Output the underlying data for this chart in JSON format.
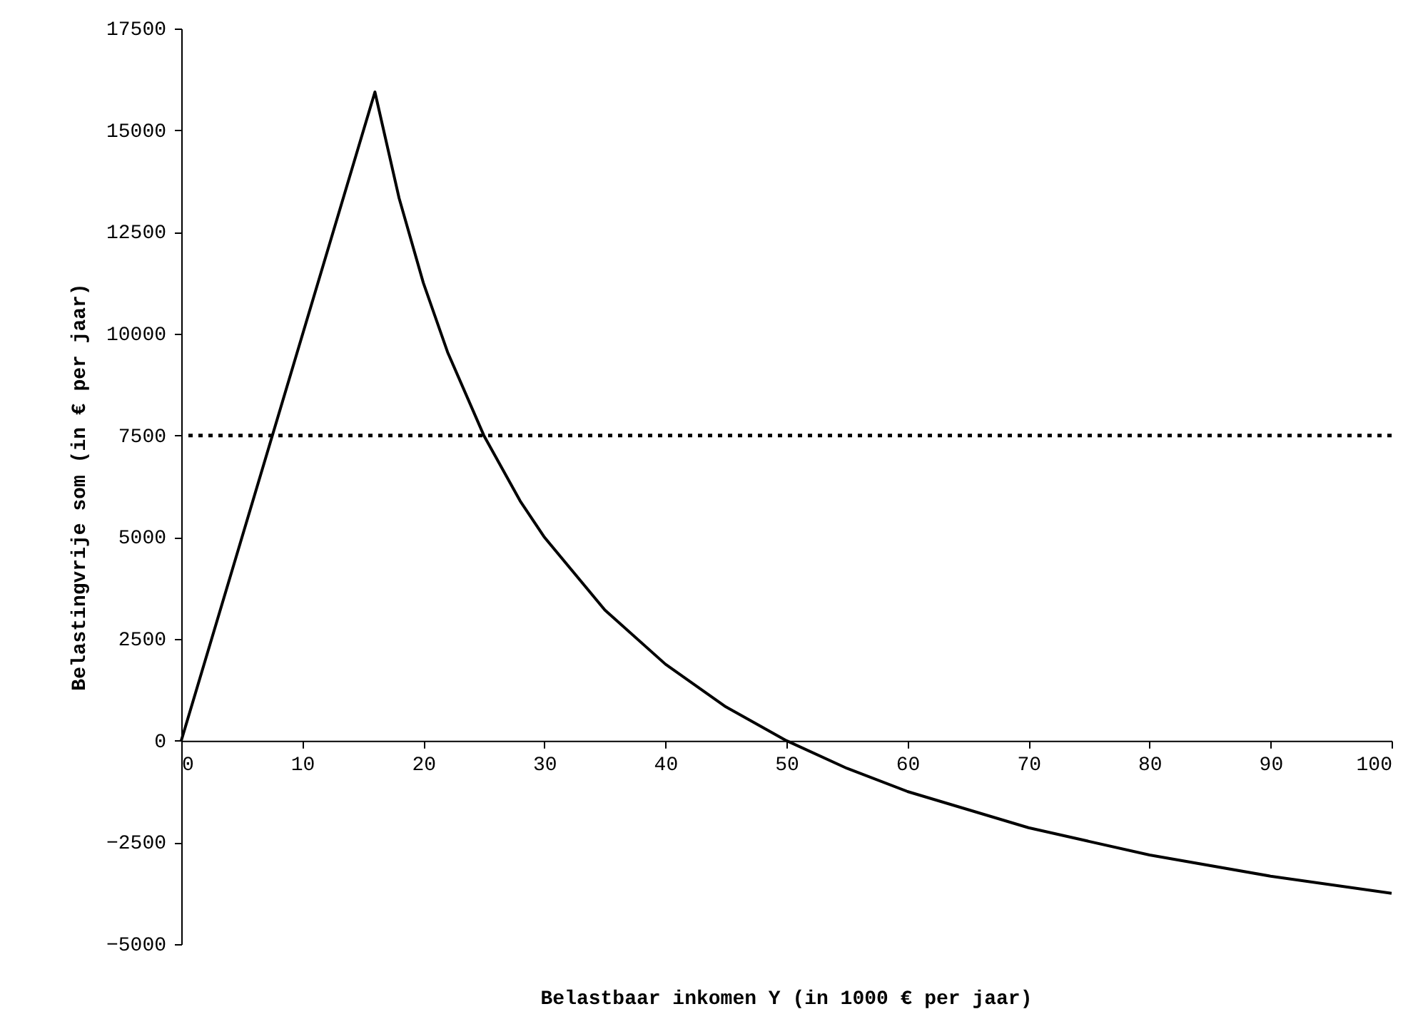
{
  "chart_data": {
    "type": "line",
    "xlabel": "Belastbaar inkomen Y (in 1000 € per jaar)",
    "ylabel": "Belastingvrije som (in € per jaar)",
    "x": [
      0,
      16,
      18,
      20,
      22,
      25,
      28,
      30,
      35,
      40,
      45,
      50,
      55,
      60,
      70,
      80,
      90,
      100
    ],
    "series": [
      {
        "color": "#000000",
        "values": [
          0,
          15940,
          13330,
          11250,
          9550,
          7500,
          5890,
          5000,
          3210,
          1880,
          830,
          0,
          -680,
          -1250,
          -2140,
          -2810,
          -3330,
          -3750
        ]
      }
    ],
    "xlim": [
      0,
      100
    ],
    "xticks": [
      0,
      10,
      20,
      30,
      40,
      50,
      60,
      70,
      80,
      90,
      100
    ],
    "ylim": [
      -5000,
      17500
    ],
    "yticks": [
      -5000,
      -2500,
      0,
      2500,
      5000,
      7500,
      10000,
      12500,
      15000,
      17500
    ],
    "ref_lines": [
      {
        "axis": "y",
        "value": 7500,
        "color": "#000000",
        "line_style": "dotted"
      }
    ],
    "grid": false,
    "line_style": "solid",
    "marker": "none"
  }
}
